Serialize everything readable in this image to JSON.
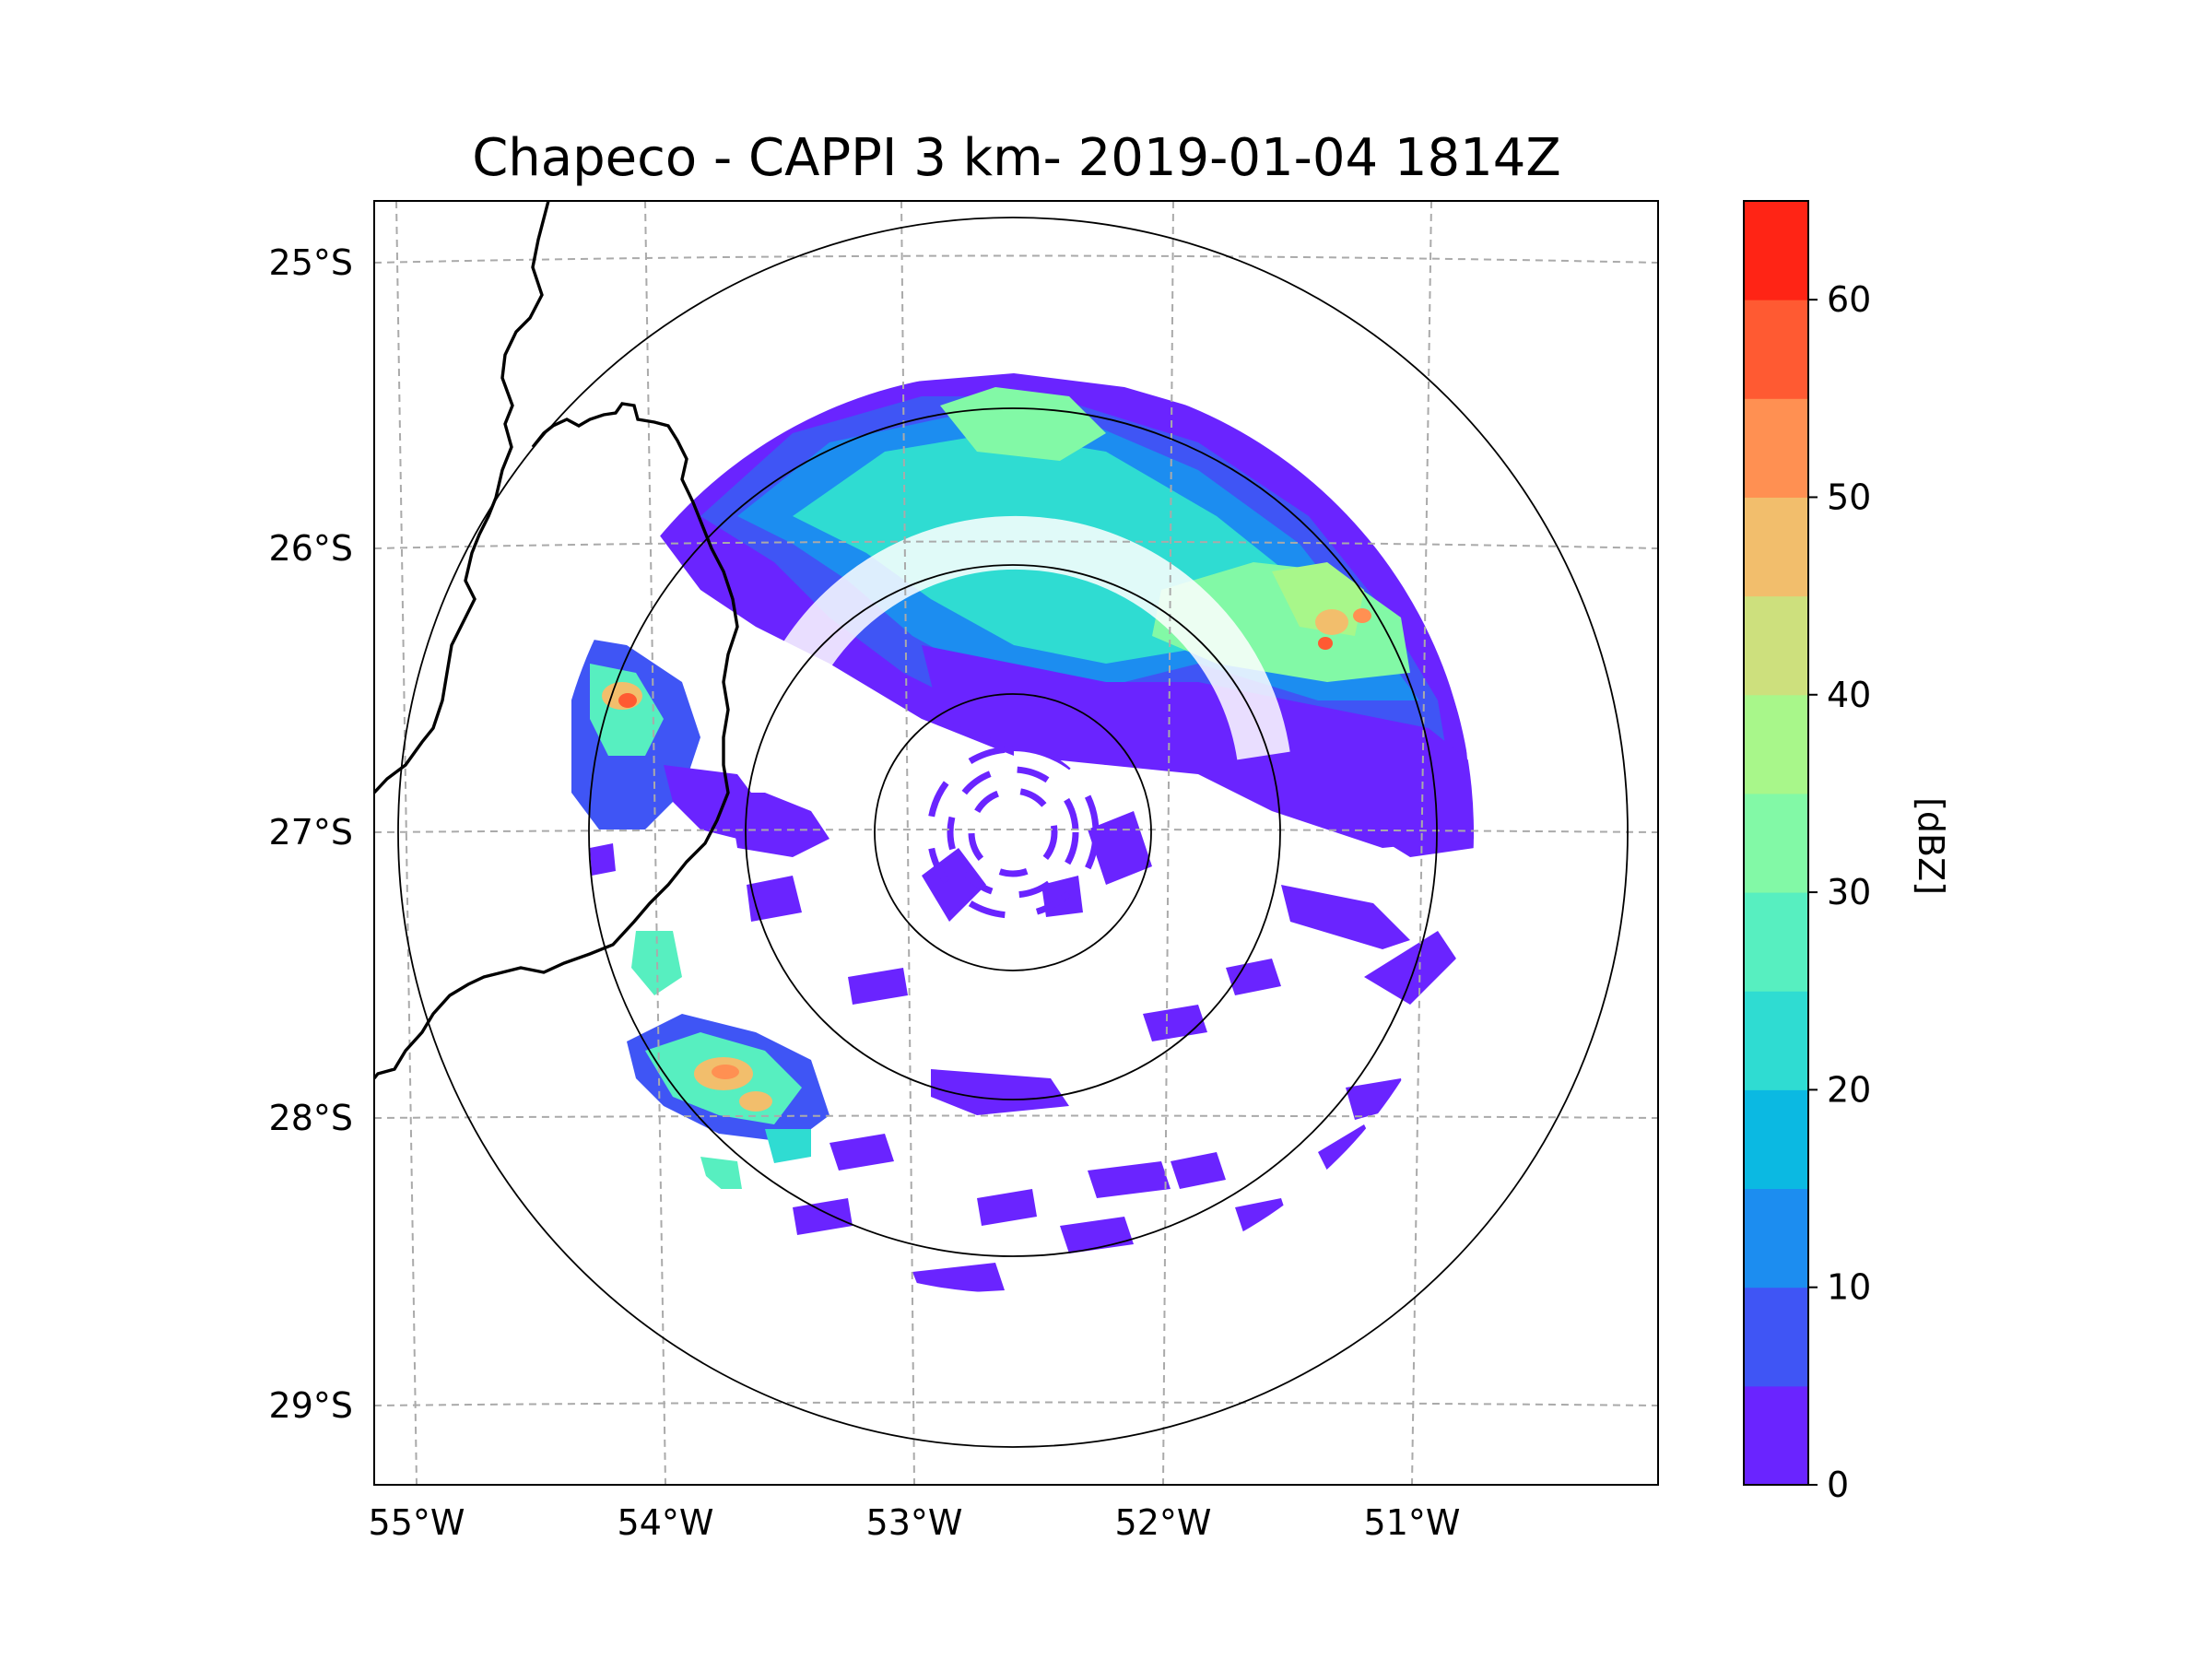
{
  "title": "Chapeco - CAPPI 3 km- 2019-01-04 1814Z",
  "map": {
    "lon_labels": [
      "55°W",
      "54°W",
      "53°W",
      "52°W",
      "51°W"
    ],
    "lat_labels": [
      "25°S",
      "26°S",
      "27°S",
      "28°S",
      "29°S"
    ],
    "radar_center": {
      "lon": -52.6,
      "lat": -27.0
    }
  },
  "colorbar": {
    "label": "[dBZ]",
    "tick_labels": [
      "0",
      "10",
      "20",
      "30",
      "40",
      "50",
      "60"
    ],
    "levels": [
      0,
      5,
      10,
      15,
      20,
      25,
      30,
      35,
      40,
      45,
      50,
      55,
      60,
      65
    ],
    "colors": [
      "#6a24ff",
      "#3f55f5",
      "#1c8df0",
      "#0bb9e2",
      "#2fdcd2",
      "#57efc0",
      "#82f9a6",
      "#a8f78a",
      "#cde07d",
      "#f2be6c",
      "#ff9052",
      "#ff5a32",
      "#ff2415"
    ]
  },
  "colors": {
    "coast": "#000000",
    "grid": "#aaaaaa",
    "ring": "#000000"
  }
}
